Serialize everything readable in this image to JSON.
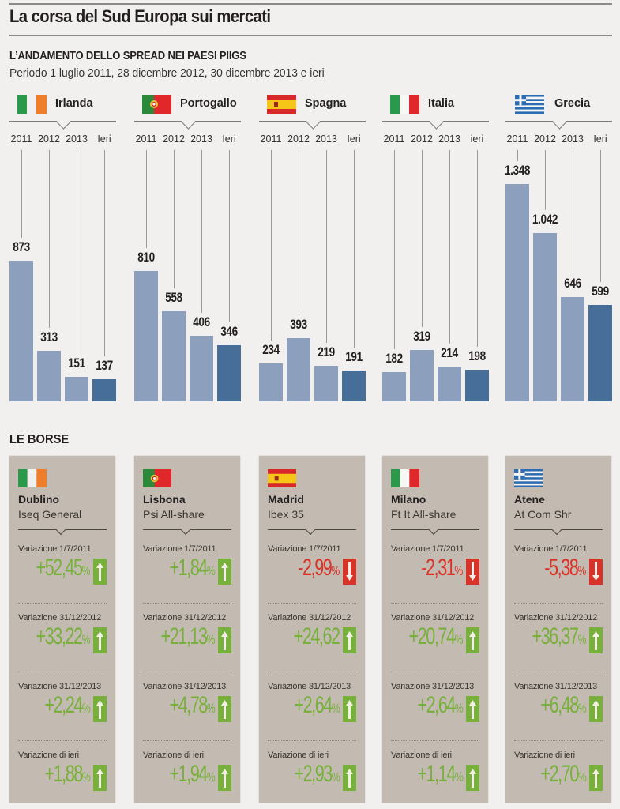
{
  "header": {
    "title": "La corsa del Sud Europa sui mercati",
    "subtitle": "L’ANDAMENTO DELLO SPREAD NEI PAESI PIIGS",
    "period": "Periodo 1 luglio 2011, 28 dicembre 2012, 30 dicembre 2013 e ieri"
  },
  "colors": {
    "bar_past": "#8c9fbd",
    "bar_today": "#476e99",
    "up": "#78b03c",
    "down": "#d93228",
    "card_bg": "#c3bbb1"
  },
  "chart_data": {
    "type": "bar",
    "title": "L’ANDAMENTO DELLO SPREAD NEI PAESI PIIGS",
    "subtitle": "Periodo 1 luglio 2011, 28 dicembre 2012, 30 dicembre 2013 e ieri",
    "xlabel": "",
    "ylabel": "",
    "ylim": [
      0,
      1348
    ],
    "grid": false,
    "categories": [
      "2011",
      "2012",
      "2013",
      "Ieri"
    ],
    "groups": [
      {
        "name": "Irlanda",
        "flag": "ireland-flag",
        "year_labels": [
          "2011",
          "2012",
          "2013",
          "Ieri"
        ],
        "values": [
          873,
          313,
          151,
          137
        ],
        "labels": [
          "873",
          "313",
          "151",
          "137"
        ]
      },
      {
        "name": "Portogallo",
        "flag": "portugal-flag",
        "year_labels": [
          "2011",
          "2012",
          "2013",
          "Ieri"
        ],
        "values": [
          810,
          558,
          406,
          346
        ],
        "labels": [
          "810",
          "558",
          "406",
          "346"
        ]
      },
      {
        "name": "Spagna",
        "flag": "spain-flag",
        "year_labels": [
          "2011",
          "2012",
          "2013",
          "Ieri"
        ],
        "values": [
          234,
          393,
          219,
          191
        ],
        "labels": [
          "234",
          "393",
          "219",
          "191"
        ]
      },
      {
        "name": "Italia",
        "flag": "italy-flag",
        "year_labels": [
          "2011",
          "2012",
          "2013",
          "ieri"
        ],
        "values": [
          182,
          319,
          214,
          198
        ],
        "labels": [
          "182",
          "319",
          "214",
          "198"
        ]
      },
      {
        "name": "Grecia",
        "flag": "greece-flag",
        "year_labels": [
          "2011",
          "2012",
          "2013",
          "Ieri"
        ],
        "values": [
          1348,
          1042,
          646,
          599
        ],
        "labels": [
          "1.348",
          "1.042",
          "646",
          "599"
        ]
      }
    ]
  },
  "borse": {
    "title": "LE BORSE",
    "markets": [
      {
        "city": "Dublino",
        "index": "Iseq General",
        "flag": "ireland-flag",
        "rows": [
          {
            "label": "Variazione 1/7/2011",
            "value": "+52,45",
            "unit": "%",
            "dir": "up"
          },
          {
            "label": "Variazione 31/12/2012",
            "value": "+33,22",
            "unit": "%",
            "dir": "up"
          },
          {
            "label": "Variazione 31/12/2013",
            "value": "+2,24",
            "unit": "%",
            "dir": "up"
          },
          {
            "label": "Variazione di ieri",
            "value": "+1,88",
            "unit": "%",
            "dir": "up"
          }
        ]
      },
      {
        "city": "Lisbona",
        "index": "Psi All-share",
        "flag": "portugal-flag",
        "rows": [
          {
            "label": "Variazione 1/7/2011",
            "value": "+1,84",
            "unit": "%",
            "dir": "up"
          },
          {
            "label": "Variazione 31/12/2012",
            "value": "+21,13",
            "unit": "%",
            "dir": "up"
          },
          {
            "label": "Variazione 31/12/2013",
            "value": "+4,78",
            "unit": "%",
            "dir": "up"
          },
          {
            "label": "Variazione di ieri",
            "value": "+1,94",
            "unit": "%",
            "dir": "up"
          }
        ]
      },
      {
        "city": "Madrid",
        "index": "Ibex 35",
        "flag": "spain-flag",
        "rows": [
          {
            "label": "Variazione 1/7/2011",
            "value": "-2,99",
            "unit": "%",
            "dir": "down"
          },
          {
            "label": "Variazione 31/12/2012",
            "value": "+24,62",
            "unit": "",
            "dir": "up"
          },
          {
            "label": "Variazione 31/12/2013",
            "value": "+2,64",
            "unit": "%",
            "dir": "up"
          },
          {
            "label": "Variazione di ieri",
            "value": "+2,93",
            "unit": "%",
            "dir": "up"
          }
        ]
      },
      {
        "city": "Milano",
        "index": "Ft It All-share",
        "flag": "italy-flag",
        "rows": [
          {
            "label": "Variazione 1/7/2011",
            "value": "-2,31",
            "unit": "%",
            "dir": "down"
          },
          {
            "label": "Variazione 31/12/2012",
            "value": "+20,74",
            "unit": "%",
            "dir": "up"
          },
          {
            "label": "Variazione 31/12/2013",
            "value": "+2,64",
            "unit": "%",
            "dir": "up"
          },
          {
            "label": "Variazione di ieri",
            "value": "+1,14",
            "unit": "%",
            "dir": "up"
          }
        ]
      },
      {
        "city": "Atene",
        "index": "At Com Shr",
        "flag": "greece-flag",
        "rows": [
          {
            "label": "Variazione 1/7/2011",
            "value": "-5,38",
            "unit": "%",
            "dir": "down"
          },
          {
            "label": "Variazione 31/12/2012",
            "value": "+36,37",
            "unit": "%",
            "dir": "up"
          },
          {
            "label": "Variazione 31/12/2013",
            "value": "+6,48",
            "unit": "%",
            "dir": "up"
          },
          {
            "label": "Variazione di ieri",
            "value": "+2,70",
            "unit": "%",
            "dir": "up"
          }
        ]
      }
    ]
  }
}
